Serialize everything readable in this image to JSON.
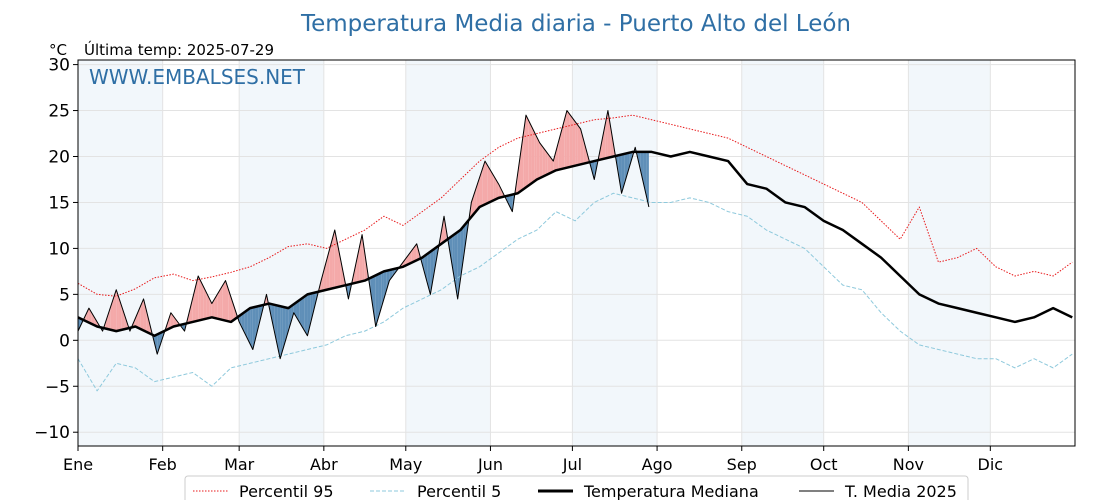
{
  "chart_data": {
    "type": "line",
    "title": "Temperatura Media diaria - Puerto Alto del León",
    "subtitle": "Última temp: 2025-07-29",
    "unit_label": "°C",
    "watermark": "WWW.EMBALSES.NET",
    "xlabel": "",
    "ylabel": "",
    "ylim": [
      -11.5,
      30.5
    ],
    "yticks": [
      -10,
      -5,
      0,
      5,
      10,
      15,
      20,
      25,
      30
    ],
    "ytick_labels": [
      "−10",
      "−5",
      "0",
      "5",
      "10",
      "15",
      "20",
      "25",
      "30"
    ],
    "xlim_day": [
      1,
      366
    ],
    "month_labels": [
      "Ene",
      "Feb",
      "Mar",
      "Abr",
      "May",
      "Jun",
      "Jul",
      "Ago",
      "Sep",
      "Oct",
      "Nov",
      "Dic"
    ],
    "month_start_days": [
      1,
      32,
      60,
      91,
      121,
      152,
      182,
      213,
      244,
      274,
      305,
      335
    ],
    "grid": true,
    "legend_position": "bottom",
    "colors": {
      "p95": "#e8191b",
      "p5": "#8ec9dc",
      "median": "#000000",
      "current": "#000000",
      "warm_fill": "#f4a9a9",
      "cold_fill": "#5f8fb8",
      "title": "#2f6fa5",
      "band": "#e6eff8"
    },
    "series": [
      {
        "name": "Percentil 95",
        "style": "dotted",
        "x": [
          1,
          8,
          15,
          22,
          29,
          36,
          43,
          50,
          57,
          64,
          71,
          78,
          85,
          92,
          99,
          106,
          113,
          120,
          127,
          134,
          141,
          148,
          155,
          162,
          169,
          176,
          183,
          190,
          197,
          204,
          211,
          218,
          225,
          232,
          239,
          246,
          253,
          260,
          267,
          274,
          281,
          288,
          295,
          302,
          309,
          316,
          323,
          330,
          337,
          344,
          351,
          358,
          365
        ],
        "values": [
          6.2,
          5.0,
          4.8,
          5.6,
          6.8,
          7.2,
          6.5,
          6.9,
          7.4,
          8.0,
          9.0,
          10.2,
          10.5,
          10.0,
          11.0,
          12.0,
          13.5,
          12.5,
          14.0,
          15.5,
          17.5,
          19.5,
          21.0,
          22.0,
          22.5,
          23.0,
          23.5,
          24.0,
          24.2,
          24.5,
          24.0,
          23.5,
          23.0,
          22.5,
          22.0,
          21.0,
          20.0,
          19.0,
          18.0,
          17.0,
          16.0,
          15.0,
          13.0,
          11.0,
          14.5,
          8.5,
          9.0,
          10.0,
          8.0,
          7.0,
          7.5,
          7.0,
          8.5
        ]
      },
      {
        "name": "Percentil 5",
        "style": "dashed",
        "x": [
          1,
          8,
          15,
          22,
          29,
          36,
          43,
          50,
          57,
          64,
          71,
          78,
          85,
          92,
          99,
          106,
          113,
          120,
          127,
          134,
          141,
          148,
          155,
          162,
          169,
          176,
          183,
          190,
          197,
          204,
          211,
          218,
          225,
          232,
          239,
          246,
          253,
          260,
          267,
          274,
          281,
          288,
          295,
          302,
          309,
          316,
          323,
          330,
          337,
          344,
          351,
          358,
          365
        ],
        "values": [
          -2.0,
          -5.5,
          -2.5,
          -3.0,
          -4.5,
          -4.0,
          -3.5,
          -5.0,
          -3.0,
          -2.5,
          -2.0,
          -1.5,
          -1.0,
          -0.5,
          0.5,
          1.0,
          2.0,
          3.5,
          4.5,
          5.5,
          7.0,
          8.0,
          9.5,
          11.0,
          12.0,
          14.0,
          13.0,
          15.0,
          16.0,
          15.5,
          15.0,
          15.0,
          15.5,
          15.0,
          14.0,
          13.5,
          12.0,
          11.0,
          10.0,
          8.0,
          6.0,
          5.5,
          3.0,
          1.0,
          -0.5,
          -1.0,
          -1.5,
          -2.0,
          -2.0,
          -3.0,
          -2.0,
          -3.0,
          -1.5
        ]
      },
      {
        "name": "Temperatura Mediana",
        "style": "thick",
        "x": [
          1,
          8,
          15,
          22,
          29,
          36,
          43,
          50,
          57,
          64,
          71,
          78,
          85,
          92,
          99,
          106,
          113,
          120,
          127,
          134,
          141,
          148,
          155,
          162,
          169,
          176,
          183,
          190,
          197,
          204,
          211,
          218,
          225,
          232,
          239,
          246,
          253,
          260,
          267,
          274,
          281,
          288,
          295,
          302,
          309,
          316,
          323,
          330,
          337,
          344,
          351,
          358,
          365
        ],
        "values": [
          2.5,
          1.5,
          1.0,
          1.5,
          0.5,
          1.5,
          2.0,
          2.5,
          2.0,
          3.5,
          4.0,
          3.5,
          5.0,
          5.5,
          6.0,
          6.5,
          7.5,
          8.0,
          9.0,
          10.5,
          12.0,
          14.5,
          15.5,
          16.0,
          17.5,
          18.5,
          19.0,
          19.5,
          20.0,
          20.5,
          20.5,
          20.0,
          20.5,
          20.0,
          19.5,
          17.0,
          16.5,
          15.0,
          14.5,
          13.0,
          12.0,
          10.5,
          9.0,
          7.0,
          5.0,
          4.0,
          3.5,
          3.0,
          2.5,
          2.0,
          2.5,
          3.5,
          2.5
        ]
      },
      {
        "name": "T. Media 2025",
        "style": "thin",
        "x": [
          1,
          5,
          10,
          15,
          20,
          25,
          30,
          35,
          40,
          45,
          50,
          55,
          60,
          65,
          70,
          75,
          80,
          85,
          90,
          95,
          100,
          105,
          110,
          115,
          120,
          125,
          130,
          135,
          140,
          145,
          150,
          155,
          160,
          165,
          170,
          175,
          180,
          185,
          190,
          195,
          200,
          205,
          210
        ],
        "values": [
          1.0,
          3.5,
          1.0,
          5.5,
          1.0,
          4.5,
          -1.5,
          3.0,
          1.0,
          7.0,
          4.0,
          6.5,
          2.0,
          -1.0,
          5.0,
          -2.0,
          3.0,
          0.5,
          6.5,
          12.0,
          4.5,
          11.5,
          1.5,
          6.5,
          8.5,
          10.5,
          5.0,
          13.5,
          4.5,
          15.0,
          19.5,
          17.0,
          14.0,
          24.5,
          21.5,
          19.5,
          25.0,
          23.0,
          17.5,
          25.0,
          16.0,
          21.0,
          14.5
        ]
      }
    ]
  },
  "legend": {
    "p95": "Percentil 95",
    "p5": "Percentil 5",
    "median": "Temperatura Mediana",
    "current": "T. Media 2025"
  }
}
